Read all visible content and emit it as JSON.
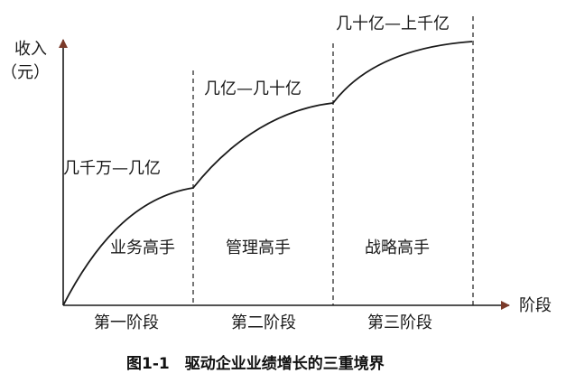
{
  "axes": {
    "y_label_line1": "收入",
    "y_label_line2": "（元）",
    "x_label": "阶段"
  },
  "chart_data": {
    "type": "line",
    "categories": [
      "第一阶段",
      "第二阶段",
      "第三阶段"
    ],
    "stages": [
      {
        "name": "第一阶段",
        "role": "业务高手",
        "revenue_range": "几千万—几亿"
      },
      {
        "name": "第二阶段",
        "role": "管理高手",
        "revenue_range": "几亿—几十亿"
      },
      {
        "name": "第三阶段",
        "role": "战略高手",
        "revenue_range": "几十亿—上千亿"
      }
    ],
    "title": "图1-1　驱动企业业绩增长的三重境界",
    "xlabel": "阶段",
    "ylabel": "收入（元）"
  },
  "caption": "图1-1　驱动企业业绩增长的三重境界",
  "colors": {
    "ink": "#1a1a1a",
    "axis_arrow": "#7a3a2a",
    "background": "#ffffff"
  }
}
